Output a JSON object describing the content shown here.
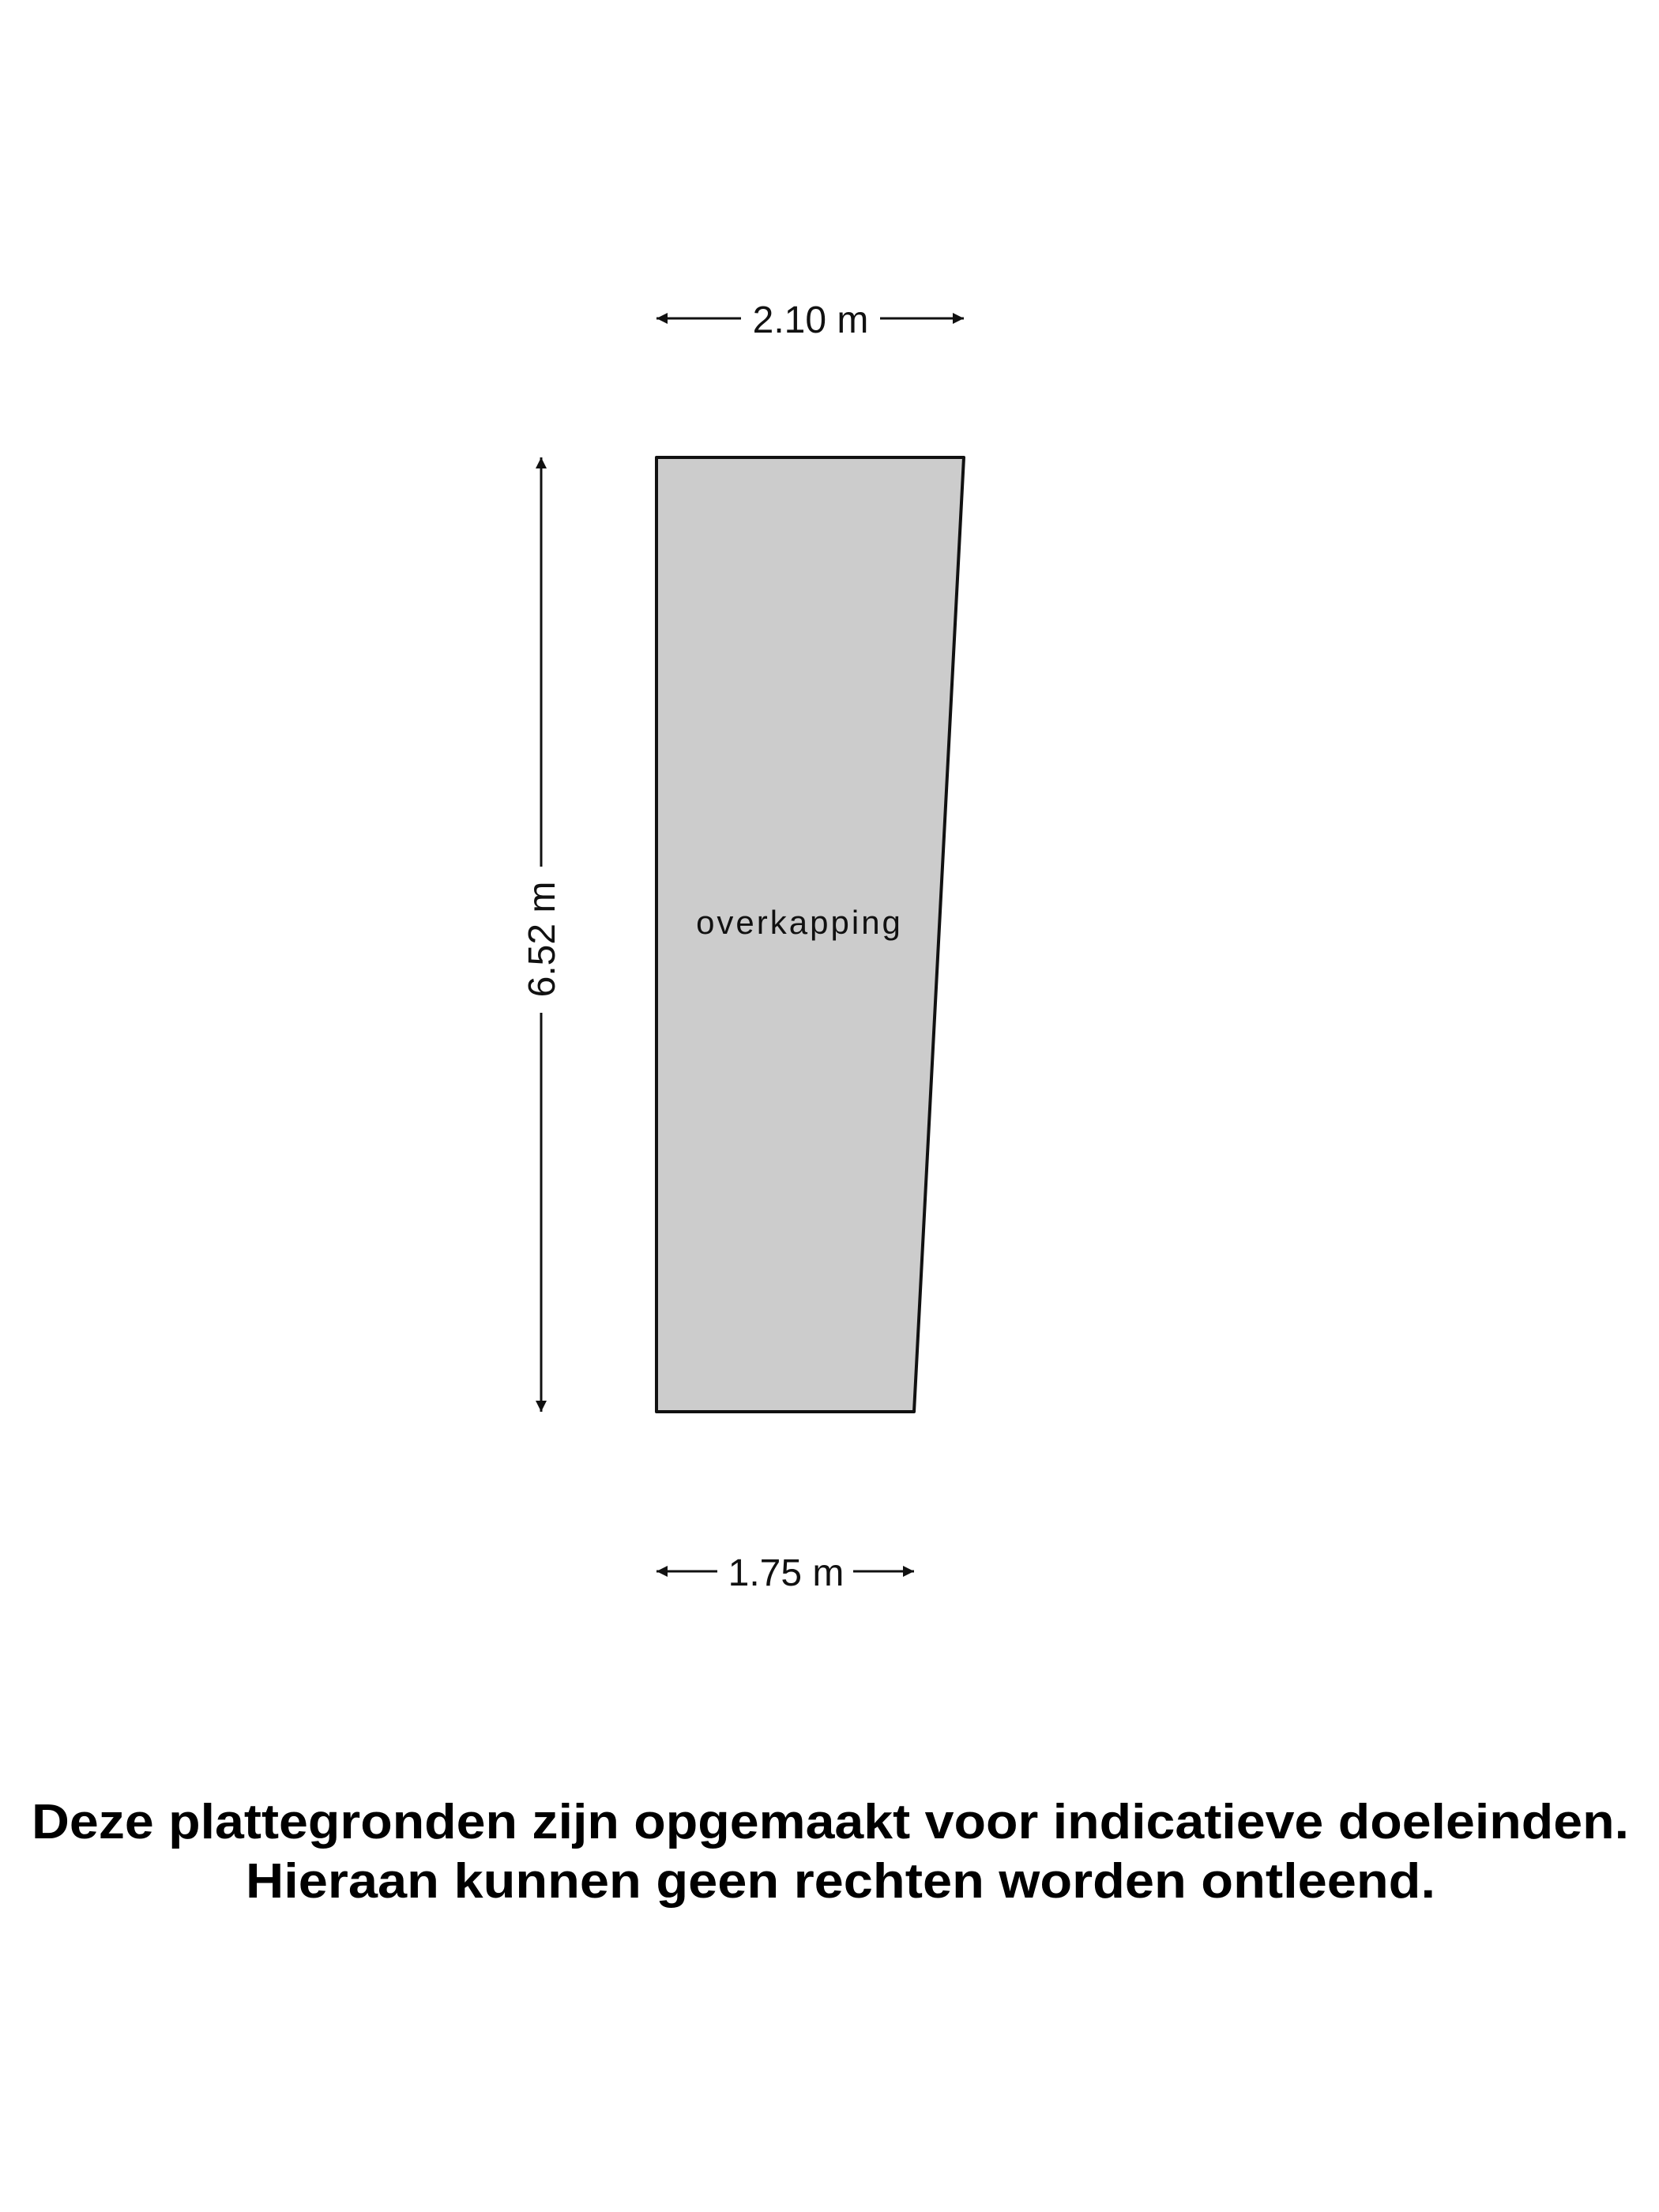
{
  "floorplan": {
    "room": {
      "label": "overkapping",
      "fill": "#cccccc",
      "stroke": "#111111"
    },
    "dimensions": {
      "top_width": "2.10 m",
      "bottom_width": "1.75 m",
      "left_height": "6.52 m"
    }
  },
  "disclaimer": {
    "line1": "Deze plattegronden zijn opgemaakt voor indicatieve doeleinden.",
    "line2": "Hieraan kunnen geen rechten worden ontleend."
  }
}
